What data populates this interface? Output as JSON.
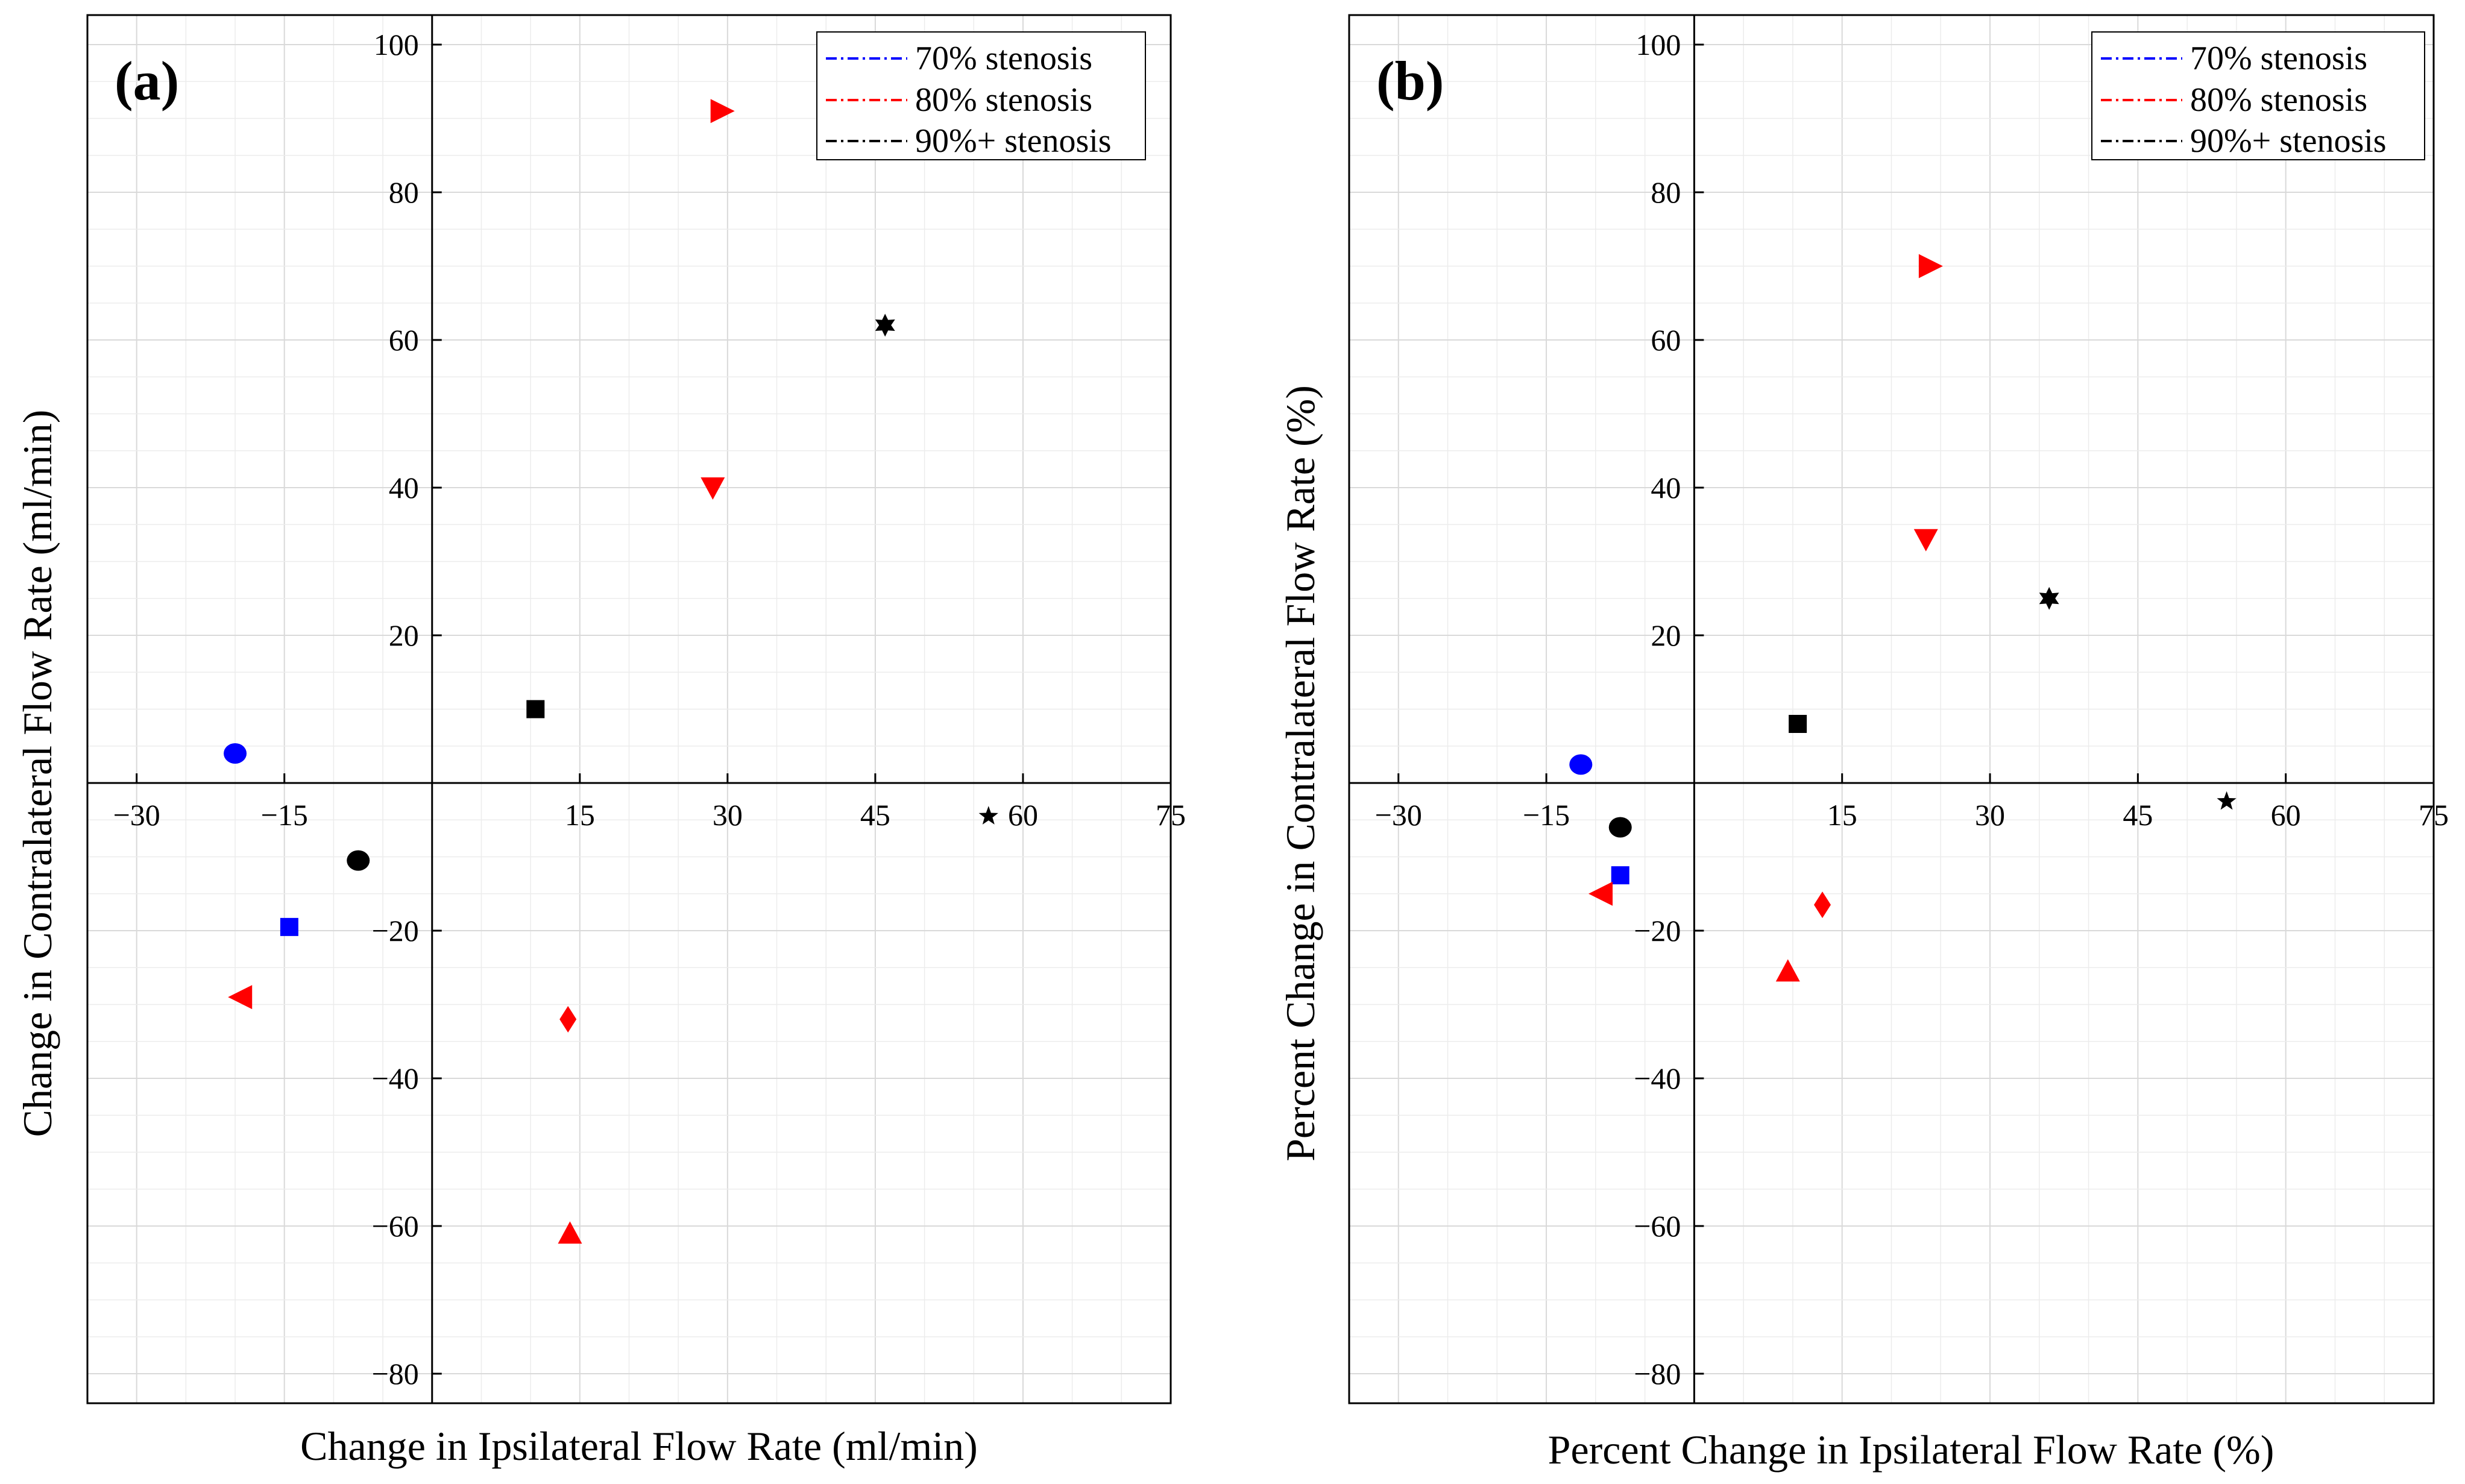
{
  "colors": {
    "blue": "#0000ff",
    "red": "#ff0000",
    "black": "#000000",
    "grid": "#d9d9d9",
    "gridMinor": "#ececec"
  },
  "legend": [
    {
      "label": "70% stenosis",
      "color": "#0000ff"
    },
    {
      "label": "80% stenosis",
      "color": "#ff0000"
    },
    {
      "label": "90%+ stenosis",
      "color": "#000000"
    }
  ],
  "chart_data": [
    {
      "type": "scatter",
      "panel_label": "(a)",
      "xlabel": "Change in Ipsilateral Flow Rate (ml/min)",
      "ylabel": "Change in Contralateral Flow Rate (ml/min)",
      "xlim": [
        -35,
        75
      ],
      "ylim": [
        -84,
        104
      ],
      "xticks": [
        -30,
        -15,
        15,
        30,
        45,
        60,
        75
      ],
      "yticks": [
        100,
        80,
        60,
        40,
        20,
        -20,
        -40,
        -60,
        -80
      ],
      "grid": true,
      "legend_position": "top-right",
      "points": [
        {
          "x": -20,
          "y": 4,
          "marker": "circle",
          "stenosis": "70% stenosis"
        },
        {
          "x": -14.5,
          "y": -19.5,
          "marker": "square",
          "stenosis": "70% stenosis"
        },
        {
          "x": 29.5,
          "y": 91,
          "marker": "triangle-right",
          "stenosis": "80% stenosis"
        },
        {
          "x": 28.5,
          "y": 40,
          "marker": "triangle-down",
          "stenosis": "80% stenosis"
        },
        {
          "x": -19.5,
          "y": -29,
          "marker": "triangle-left",
          "stenosis": "80% stenosis"
        },
        {
          "x": 13.8,
          "y": -32,
          "marker": "diamond",
          "stenosis": "80% stenosis"
        },
        {
          "x": 14,
          "y": -61,
          "marker": "triangle-up",
          "stenosis": "80% stenosis"
        },
        {
          "x": 10.5,
          "y": 10,
          "marker": "square",
          "stenosis": "90%+ stenosis"
        },
        {
          "x": -7.5,
          "y": -10.5,
          "marker": "circle",
          "stenosis": "90%+ stenosis"
        },
        {
          "x": 46,
          "y": 62,
          "marker": "hexagram",
          "stenosis": "90%+ stenosis"
        },
        {
          "x": 56.5,
          "y": -4.5,
          "marker": "star",
          "stenosis": "90%+ stenosis"
        }
      ]
    },
    {
      "type": "scatter",
      "panel_label": "(b)",
      "xlabel": "Percent Change in Ipsilateral Flow Rate (%)",
      "ylabel": "Percent Change in Contralateral Flow Rate (%)",
      "xlim": [
        -35,
        75
      ],
      "ylim": [
        -84,
        104
      ],
      "xticks": [
        -30,
        -15,
        15,
        30,
        45,
        60,
        75
      ],
      "yticks": [
        100,
        80,
        60,
        40,
        20,
        -20,
        -40,
        -60,
        -80
      ],
      "grid": true,
      "legend_position": "top-right",
      "points": [
        {
          "x": -11.5,
          "y": 2.5,
          "marker": "circle",
          "stenosis": "70% stenosis"
        },
        {
          "x": -7.5,
          "y": -12.5,
          "marker": "square",
          "stenosis": "70% stenosis"
        },
        {
          "x": 24,
          "y": 70,
          "marker": "triangle-right",
          "stenosis": "80% stenosis"
        },
        {
          "x": 23.5,
          "y": 33,
          "marker": "triangle-down",
          "stenosis": "80% stenosis"
        },
        {
          "x": -9.5,
          "y": -15,
          "marker": "triangle-left",
          "stenosis": "80% stenosis"
        },
        {
          "x": 13,
          "y": -16.5,
          "marker": "diamond",
          "stenosis": "80% stenosis"
        },
        {
          "x": 9.5,
          "y": -25.5,
          "marker": "triangle-up",
          "stenosis": "80% stenosis"
        },
        {
          "x": 10.5,
          "y": 8,
          "marker": "square",
          "stenosis": "90%+ stenosis"
        },
        {
          "x": -7.5,
          "y": -6,
          "marker": "circle",
          "stenosis": "90%+ stenosis"
        },
        {
          "x": 36,
          "y": 25,
          "marker": "hexagram",
          "stenosis": "90%+ stenosis"
        },
        {
          "x": 54,
          "y": -2.5,
          "marker": "star",
          "stenosis": "90%+ stenosis"
        }
      ]
    }
  ]
}
